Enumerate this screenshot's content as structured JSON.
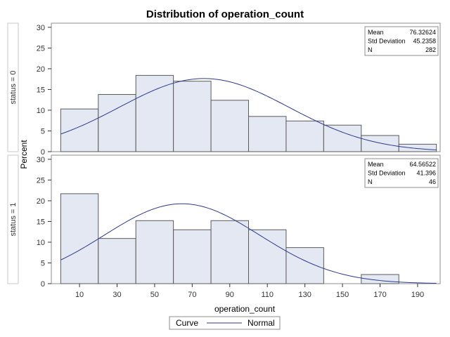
{
  "chart_data": {
    "type": "bar",
    "title": "Distribution of operation_count",
    "xlabel": "operation_count",
    "ylabel": "Percent",
    "xlim": [
      -5,
      202
    ],
    "ylim": [
      0,
      31
    ],
    "x_ticks": [
      10,
      30,
      50,
      70,
      90,
      110,
      130,
      150,
      170,
      190
    ],
    "y_ticks": [
      0,
      5,
      10,
      15,
      20,
      25,
      30
    ],
    "bin_width": 20,
    "bins": [
      0,
      20,
      40,
      60,
      80,
      100,
      120,
      140,
      160,
      180,
      200
    ],
    "bar_color": "#e3e8f2",
    "bar_edge_color": "#5a5a5a",
    "curve_color": "#2e3a8c",
    "panels": [
      {
        "label": "status = 0",
        "values": [
          10.3,
          13.8,
          18.4,
          17.0,
          12.4,
          8.5,
          7.4,
          6.4,
          3.9,
          1.8
        ],
        "stats": {
          "mean": 76.32624,
          "std": 45.2358,
          "n": 282
        },
        "inset": [
          {
            "label": "Mean",
            "value": "76.32624"
          },
          {
            "label": "Std Deviation",
            "value": "45.2358"
          },
          {
            "label": "N",
            "value": "282"
          }
        ]
      },
      {
        "label": "status = 1",
        "values": [
          21.7,
          10.9,
          15.2,
          13.0,
          15.2,
          13.0,
          8.7,
          0,
          2.2,
          0
        ],
        "stats": {
          "mean": 64.56522,
          "std": 41.396,
          "n": 46
        },
        "inset": [
          {
            "label": "Mean",
            "value": "64.56522"
          },
          {
            "label": "Std Deviation",
            "value": "41.396"
          },
          {
            "label": "N",
            "value": "46"
          }
        ]
      }
    ],
    "legend": {
      "title": "Curve",
      "entries": [
        {
          "name": "Normal"
        }
      ],
      "position": "bottom"
    }
  }
}
